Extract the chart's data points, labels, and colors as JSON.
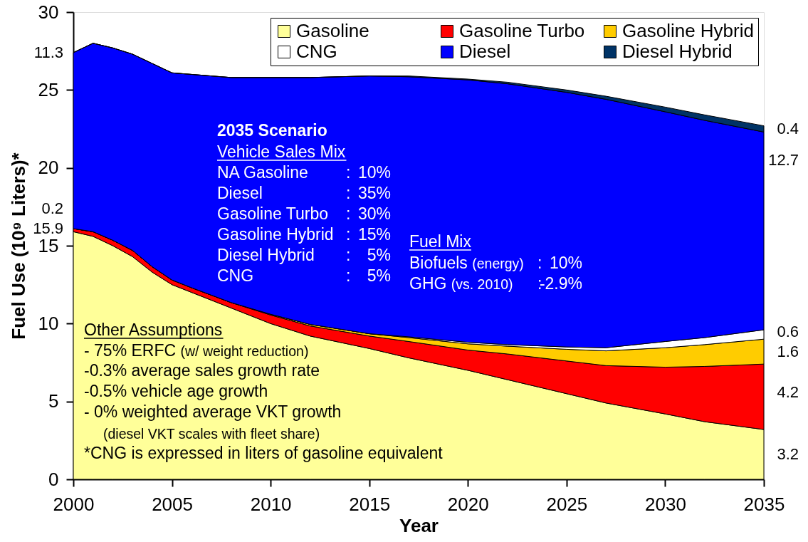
{
  "chart_data": {
    "type": "area",
    "stacked": true,
    "xlabel": "Year",
    "ylabel": "Fuel Use (10⁹ Liters)*",
    "x": [
      2000,
      2001,
      2002,
      2003,
      2004,
      2005,
      2006,
      2008,
      2010,
      2012,
      2015,
      2017,
      2020,
      2022,
      2025,
      2027,
      2030,
      2032,
      2035
    ],
    "xlim": [
      2000,
      2035
    ],
    "xticks": [
      2000,
      2005,
      2010,
      2015,
      2020,
      2025,
      2030,
      2035
    ],
    "ylim": [
      0,
      30
    ],
    "yticks": [
      0,
      5,
      10,
      15,
      20,
      25,
      30
    ],
    "legend": "top right",
    "series": [
      {
        "name": "Gasoline",
        "color": "#ffff99",
        "values": [
          15.9,
          15.6,
          15.0,
          14.3,
          13.3,
          12.5,
          12.0,
          11.0,
          10.0,
          9.2,
          8.4,
          7.8,
          7.0,
          6.4,
          5.5,
          4.9,
          4.2,
          3.7,
          3.2
        ],
        "value_labels": [
          "15.9",
          null,
          null,
          null,
          null,
          null,
          null,
          null,
          null,
          null,
          null,
          null,
          null,
          null,
          null,
          null,
          null,
          null,
          "3.2"
        ]
      },
      {
        "name": "Gasoline Turbo",
        "color": "#ff0000",
        "values": [
          0.2,
          0.3,
          0.35,
          0.4,
          0.35,
          0.3,
          0.3,
          0.35,
          0.55,
          0.65,
          0.8,
          1.05,
          1.3,
          1.65,
          2.1,
          2.4,
          3.0,
          3.55,
          4.2
        ],
        "value_labels": [
          "0.2",
          null,
          null,
          null,
          null,
          null,
          null,
          null,
          null,
          null,
          null,
          null,
          null,
          null,
          null,
          null,
          null,
          null,
          "4.2"
        ]
      },
      {
        "name": "Gasoline Hybrid",
        "color": "#ffcc00",
        "values": [
          0,
          0,
          0,
          0,
          0,
          0,
          0,
          0,
          0.05,
          0.1,
          0.15,
          0.25,
          0.4,
          0.5,
          0.75,
          0.95,
          1.25,
          1.4,
          1.6
        ],
        "value_labels": [
          null,
          null,
          null,
          null,
          null,
          null,
          null,
          null,
          null,
          null,
          null,
          null,
          null,
          null,
          null,
          null,
          null,
          null,
          "1.6"
        ]
      },
      {
        "name": "CNG",
        "color": "#ffffff",
        "values": [
          0,
          0,
          0,
          0,
          0,
          0,
          0,
          0,
          0,
          0,
          0,
          0.05,
          0.1,
          0.1,
          0.15,
          0.2,
          0.4,
          0.45,
          0.6
        ],
        "value_labels": [
          null,
          null,
          null,
          null,
          null,
          null,
          null,
          null,
          null,
          null,
          null,
          null,
          null,
          null,
          null,
          null,
          null,
          null,
          "0.6"
        ]
      },
      {
        "name": "Diesel",
        "color": "#0000ff",
        "values": [
          11.3,
          12.1,
          12.35,
          12.6,
          13.05,
          13.3,
          13.7,
          14.45,
          15.2,
          15.85,
          16.55,
          16.7,
          16.85,
          16.75,
          16.35,
          15.95,
          14.75,
          13.95,
          12.7
        ],
        "value_labels": [
          "11.3",
          null,
          null,
          null,
          null,
          null,
          null,
          null,
          null,
          null,
          null,
          null,
          null,
          null,
          null,
          null,
          null,
          null,
          "12.7"
        ]
      },
      {
        "name": "Diesel Hybrid",
        "color": "#003366",
        "values": [
          0,
          0,
          0,
          0,
          0,
          0,
          0,
          0,
          0,
          0,
          0,
          0.05,
          0.05,
          0.1,
          0.15,
          0.2,
          0.3,
          0.35,
          0.4
        ],
        "value_labels": [
          null,
          null,
          null,
          null,
          null,
          null,
          null,
          null,
          null,
          null,
          null,
          null,
          null,
          null,
          null,
          null,
          null,
          null,
          "0.4"
        ]
      }
    ],
    "annotations": [
      "2035 Scenario",
      "Vehicle Sales Mix",
      "NA Gasoline : 10%",
      "Diesel : 35%",
      "Gasoline Turbo : 30%",
      "Gasoline Hybrid : 15%",
      "Diesel Hybrid : 5%",
      "CNG : 5%",
      "Fuel Mix",
      "Biofuels (energy) : 10%",
      "GHG (vs. 2010) :-2.9%",
      "Other Assumptions",
      "- 75% ERFC (w/ weight reduction)",
      "-0.3% average sales growth rate",
      "-0.5% vehicle age growth",
      "- 0% weighted average VKT growth",
      "(diesel VKT scales with fleet share)",
      "*CNG is expressed in liters of gasoline equivalent"
    ]
  }
}
